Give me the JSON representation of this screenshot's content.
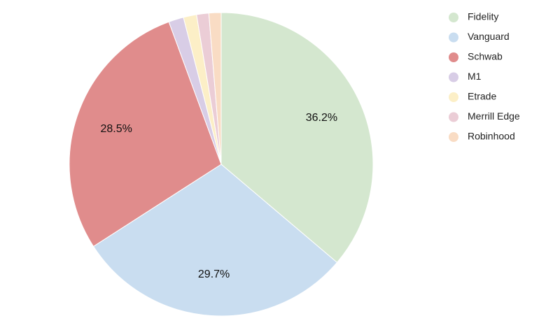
{
  "chart_data": {
    "type": "pie",
    "title": "",
    "legend_position": "right",
    "slices": [
      {
        "label": "Fidelity",
        "value": 36.2,
        "color": "#d4e7cf",
        "show_label": true
      },
      {
        "label": "Vanguard",
        "value": 29.7,
        "color": "#c9ddf0",
        "show_label": true
      },
      {
        "label": "Schwab",
        "value": 28.5,
        "color": "#e08c8c",
        "show_label": true
      },
      {
        "label": "M1",
        "value": 1.6,
        "color": "#d8cde6",
        "show_label": false
      },
      {
        "label": "Etrade",
        "value": 1.4,
        "color": "#fcefc7",
        "show_label": false
      },
      {
        "label": "Merrill Edge",
        "value": 1.3,
        "color": "#ebcdd6",
        "show_label": false
      },
      {
        "label": "Robinhood",
        "value": 1.3,
        "color": "#f9dcc4",
        "show_label": false
      }
    ]
  }
}
